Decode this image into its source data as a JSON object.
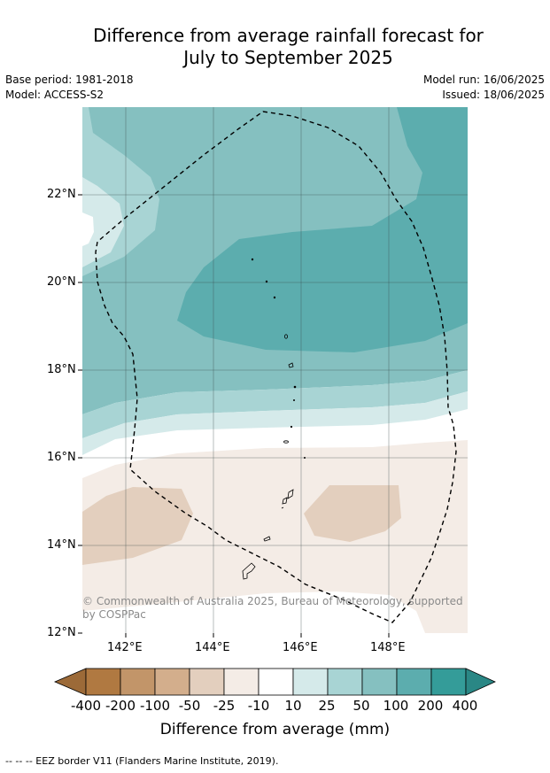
{
  "title": {
    "line1": "Difference from average rainfall forecast for",
    "line2": "July to September 2025"
  },
  "meta": {
    "base_period": "Base period: 1981-2018",
    "model": "Model: ACCESS-S2",
    "model_run": "Model run: 16/06/2025",
    "issued": "Issued: 18/06/2025"
  },
  "map": {
    "lon_range": [
      141,
      149.8
    ],
    "lat_range": [
      12,
      24
    ],
    "lat_ticks": [
      "12°N",
      "14°N",
      "16°N",
      "18°N",
      "20°N",
      "22°N"
    ],
    "lon_ticks": [
      "142°E",
      "144°E",
      "146°E",
      "148°E"
    ],
    "copyright": "© Commonwealth of Australia 2025, Bureau of Meteorology, supported by COSPPac",
    "eez_border_style": "dashed"
  },
  "colorbar": {
    "title": "Difference from average (mm)",
    "labels": [
      "-400",
      "-200",
      "-100",
      "-50",
      "-25",
      "-10",
      "10",
      "25",
      "50",
      "100",
      "200",
      "400"
    ],
    "colors": [
      "#9c6a38",
      "#b07941",
      "#c29569",
      "#d3ae8c",
      "#e3cfbe",
      "#f4ece6",
      "#ffffff",
      "#d5eaea",
      "#a8d4d4",
      "#85c0c0",
      "#5cadae",
      "#349c99",
      "#2a8785"
    ]
  },
  "footnote": "-- -- -- EEZ border V11 (Flanders Marine Institute, 2019)."
}
